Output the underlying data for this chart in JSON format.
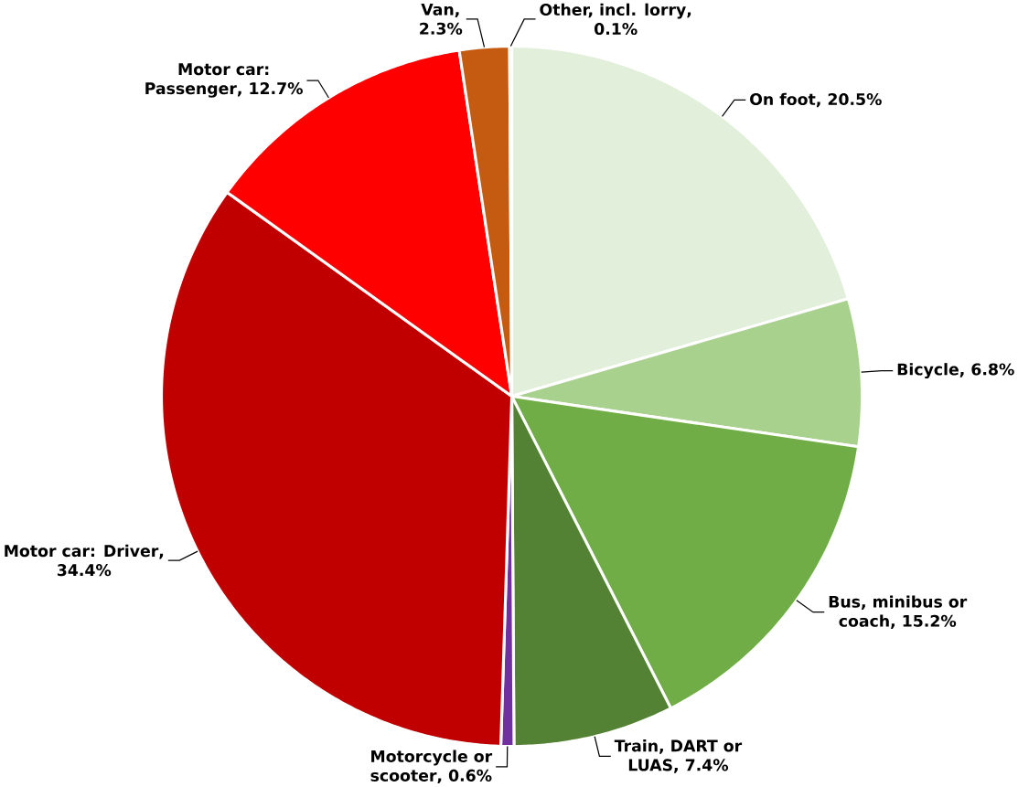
{
  "chart_data": {
    "type": "pie",
    "categories": [
      "On foot",
      "Bicycle",
      "Bus, minibus or coach",
      "Train, DART or LUAS",
      "Motorcycle or scooter",
      "Motor car: Driver",
      "Motor car: Passenger",
      "Van",
      "Other, incl. lorry"
    ],
    "values": [
      20.5,
      6.8,
      15.2,
      7.4,
      0.6,
      34.4,
      12.7,
      2.3,
      0.1
    ],
    "value_labels": [
      ", 20.5%",
      ", 6.8%",
      ", 15.2%",
      ", 7.4%",
      ", 0.6%",
      ", 34.4%",
      ", 12.7%",
      ", 2.3%",
      ", 0.1%"
    ],
    "colors": [
      "#e2efda",
      "#a9d18e",
      "#70ad47",
      "#548235",
      "#7030a0",
      "#c00000",
      "#ff0000",
      "#c55a11",
      "#7f6000"
    ]
  }
}
